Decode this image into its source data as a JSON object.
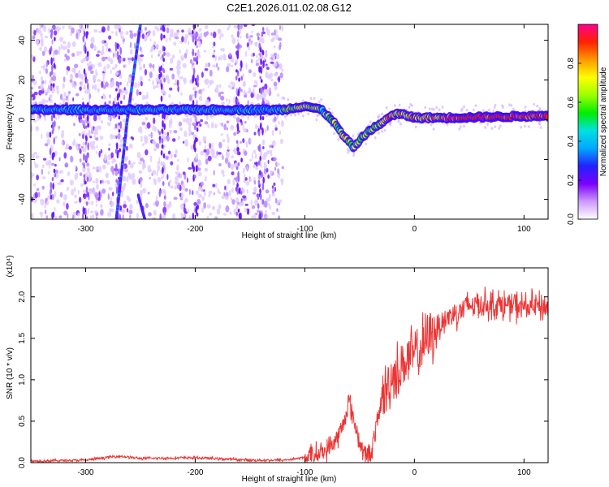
{
  "title": "C2E1.2026.011.02.08.G12",
  "chart_data": [
    {
      "type": "heatmap",
      "name": "spectrogram",
      "xlabel": "Height of straight line (km)",
      "ylabel": "Frequency (Hz)",
      "xlim": [
        -350,
        122
      ],
      "ylim": [
        -50,
        48
      ],
      "xticks": [
        -300,
        -200,
        -100,
        0,
        100
      ],
      "yticks": [
        -40,
        -20,
        0,
        20,
        40
      ],
      "colorbar": {
        "label": "Normalized spectral amplitude",
        "range": [
          0,
          1
        ],
        "ticks": [
          0.0,
          0.2,
          0.4,
          0.6,
          0.8
        ],
        "tick_labels": [
          "0.0",
          "0.2",
          "0.4",
          "0.6",
          "0.8"
        ],
        "colors": [
          "#ffffff",
          "#cc99ff",
          "#7a00ff",
          "#2222ff",
          "#00a8ff",
          "#00e0e0",
          "#00ee00",
          "#9cff00",
          "#ffff00",
          "#ff9900",
          "#ff2200",
          "#ff0090"
        ]
      },
      "main_track": [
        [
          -350,
          5
        ],
        [
          -120,
          5
        ],
        [
          -100,
          7
        ],
        [
          -85,
          5
        ],
        [
          -75,
          0
        ],
        [
          -65,
          -8
        ],
        [
          -55,
          -14
        ],
        [
          -48,
          -9
        ],
        [
          -40,
          -5
        ],
        [
          -30,
          -2
        ],
        [
          -25,
          1
        ],
        [
          -15,
          3
        ],
        [
          -5,
          2
        ],
        [
          0,
          1
        ],
        [
          30,
          1
        ],
        [
          122,
          2
        ]
      ],
      "interference_track": [
        [
          -250,
          48
        ],
        [
          -262,
          0
        ],
        [
          -272,
          -50
        ]
      ],
      "noise_region_x": [
        -350,
        -125
      ]
    },
    {
      "type": "line",
      "name": "snr",
      "xlabel": "Height of straight line (km)",
      "ylabel": "SNR (10 * v/v)",
      "y_multiplier": "(x10⁴)",
      "xlim": [
        -350,
        122
      ],
      "ylim": [
        0,
        2.35
      ],
      "xticks": [
        -300,
        -200,
        -100,
        0,
        100
      ],
      "yticks": [
        0.0,
        0.5,
        1.0,
        1.5,
        2.0
      ],
      "ytick_labels": [
        "0.0",
        "0.5",
        "1.0",
        "1.5",
        "2.0"
      ],
      "color": "#ee3333",
      "series": [
        {
          "name": "SNR",
          "x": [
            -350,
            -300,
            -270,
            -250,
            -200,
            -150,
            -120,
            -100,
            -90,
            -80,
            -70,
            -65,
            -60,
            -55,
            -50,
            -45,
            -40,
            -35,
            -30,
            -25,
            -20,
            -15,
            -10,
            -5,
            0,
            10,
            20,
            30,
            40,
            50,
            60,
            80,
            100,
            122
          ],
          "values": [
            0.02,
            0.03,
            0.08,
            0.05,
            0.06,
            0.03,
            0.03,
            0.06,
            0.1,
            0.15,
            0.3,
            0.45,
            0.75,
            0.5,
            0.25,
            0.08,
            0.1,
            0.4,
            0.75,
            0.9,
            1.05,
            1.1,
            1.2,
            1.25,
            1.3,
            1.45,
            1.62,
            1.75,
            1.82,
            1.9,
            1.92,
            1.9,
            1.88,
            1.88
          ]
        }
      ]
    }
  ]
}
